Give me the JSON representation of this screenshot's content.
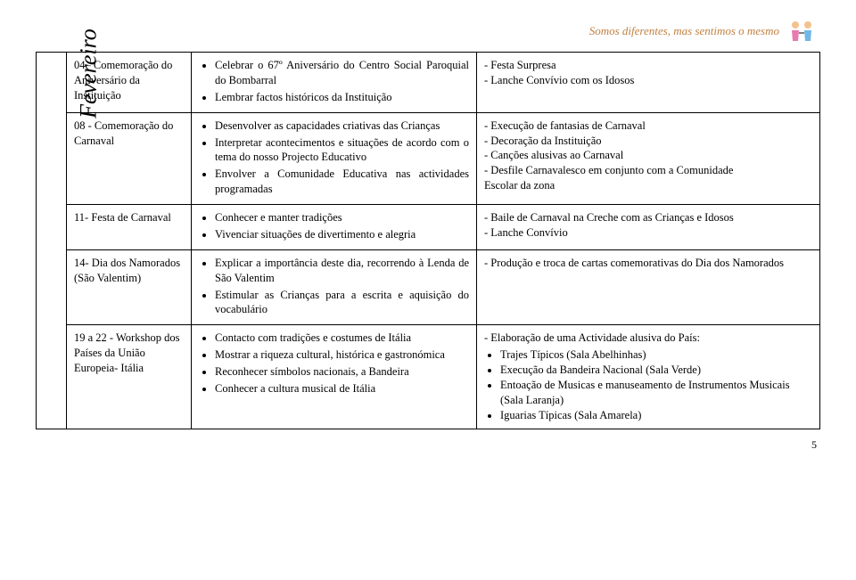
{
  "header": {
    "slogan": "Somos diferentes, mas sentimos o mesmo"
  },
  "month": "Fevereiro",
  "rows": [
    {
      "date": "04– Comemoração do Aniversário da Instituição",
      "activities": [
        "Celebrar o 67º Aniversário do Centro Social Paroquial do Bombarral",
        "Lembrar factos históricos da Instituição"
      ],
      "outcomes_lines": [
        "- Festa Surpresa",
        "- Lanche Convívio com os Idosos"
      ]
    },
    {
      "date": "08 - Comemoração do Carnaval",
      "activities": [
        "Desenvolver as capacidades criativas das Crianças",
        "Interpretar acontecimentos e situações de acordo com o tema do nosso Projecto Educativo",
        "Envolver a Comunidade Educativa nas actividades programadas"
      ],
      "outcomes_lines": [
        "- Execução de fantasias de Carnaval",
        "- Decoração da Instituição",
        "- Canções alusivas ao Carnaval",
        "- Desfile Carnavalesco em conjunto com a Comunidade",
        "Escolar da zona"
      ]
    },
    {
      "date": "11- Festa de Carnaval",
      "activities": [
        "Conhecer e manter tradições",
        "Vivenciar situações de divertimento e alegria"
      ],
      "outcomes_lines": [
        "- Baile de Carnaval na Creche com as Crianças e Idosos",
        "- Lanche Convívio"
      ]
    },
    {
      "date": "14- Dia dos Namorados (São Valentim)",
      "activities": [
        "Explicar a importância deste dia, recorrendo à Lenda de São Valentim",
        "Estimular as Crianças para a escrita e aquisição do vocabulário"
      ],
      "outcomes_lines": [
        "- Produção e troca de cartas comemorativas do Dia dos Namorados"
      ]
    },
    {
      "date": "19 a 22 - Workshop dos Países da União Europeia- Itália",
      "activities": [
        "Contacto com tradições e costumes de Itália",
        "Mostrar a riqueza cultural, histórica e gastronómica",
        "Reconhecer símbolos nacionais, a Bandeira",
        "Conhecer a cultura musical de Itália"
      ],
      "outcomes_intro": "- Elaboração de uma Actividade alusiva do País:",
      "outcomes_sub": [
        "Trajes Típicos (Sala Abelhinhas)",
        "Execução da Bandeira Nacional (Sala Verde)",
        "Entoação de Musicas e manuseamento de Instrumentos Musicais (Sala Laranja)",
        "Iguarias Típicas (Sala Amarela)"
      ]
    }
  ],
  "page_number": "5"
}
